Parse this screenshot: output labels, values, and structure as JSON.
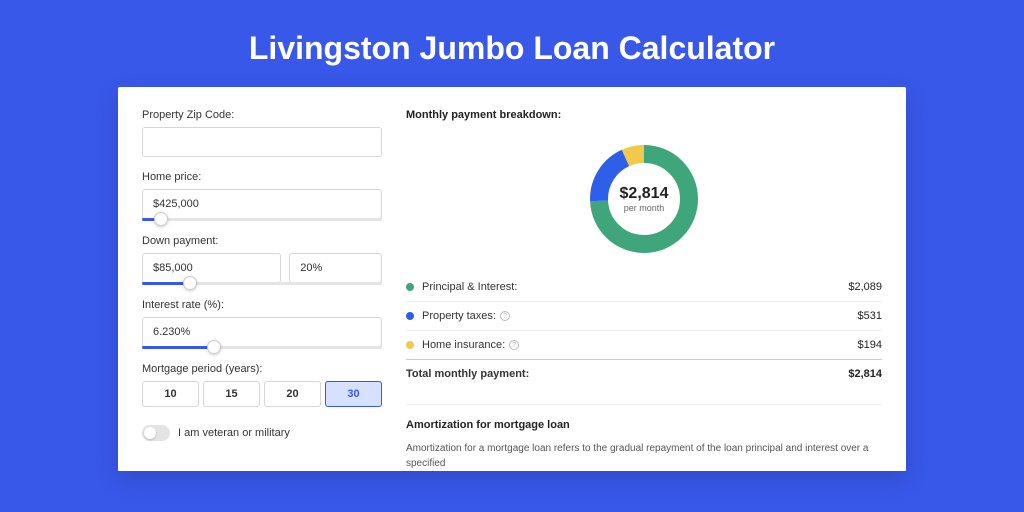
{
  "page": {
    "title": "Livingston Jumbo Loan Calculator",
    "background_color": "#3858e9",
    "card_background": "#ffffff"
  },
  "form": {
    "zip": {
      "label": "Property Zip Code:",
      "value": ""
    },
    "home_price": {
      "label": "Home price:",
      "value": "$425,000",
      "slider_pct": 8
    },
    "down_payment": {
      "label": "Down payment:",
      "value": "$85,000",
      "pct_value": "20%",
      "slider_pct": 20
    },
    "interest_rate": {
      "label": "Interest rate (%):",
      "value": "6.230%",
      "slider_pct": 30
    },
    "mortgage_period": {
      "label": "Mortgage period (years):",
      "options": [
        "10",
        "15",
        "20",
        "30"
      ],
      "selected_index": 3
    },
    "veteran": {
      "label": "I am veteran or military",
      "checked": false
    }
  },
  "breakdown": {
    "title": "Monthly payment breakdown:",
    "center_amount": "$2,814",
    "center_sub": "per month",
    "donut": {
      "type": "donut",
      "segments": [
        {
          "key": "principal_interest",
          "value": 2089,
          "color": "#3fa57a",
          "pct": 0.742
        },
        {
          "key": "property_taxes",
          "value": 531,
          "color": "#2e5fe8",
          "pct": 0.189
        },
        {
          "key": "home_insurance",
          "value": 194,
          "color": "#f2c94c",
          "pct": 0.069
        }
      ],
      "stroke_width": 18,
      "radius": 45,
      "background_color": "#ffffff"
    },
    "items": [
      {
        "label": "Principal & Interest:",
        "value": "$2,089",
        "color": "#3fa57a",
        "info": false
      },
      {
        "label": "Property taxes:",
        "value": "$531",
        "color": "#2e5fe8",
        "info": true
      },
      {
        "label": "Home insurance:",
        "value": "$194",
        "color": "#f2c94c",
        "info": true
      }
    ],
    "total": {
      "label": "Total monthly payment:",
      "value": "$2,814"
    }
  },
  "amortization": {
    "title": "Amortization for mortgage loan",
    "text": "Amortization for a mortgage loan refers to the gradual repayment of the loan principal and interest over a specified"
  }
}
